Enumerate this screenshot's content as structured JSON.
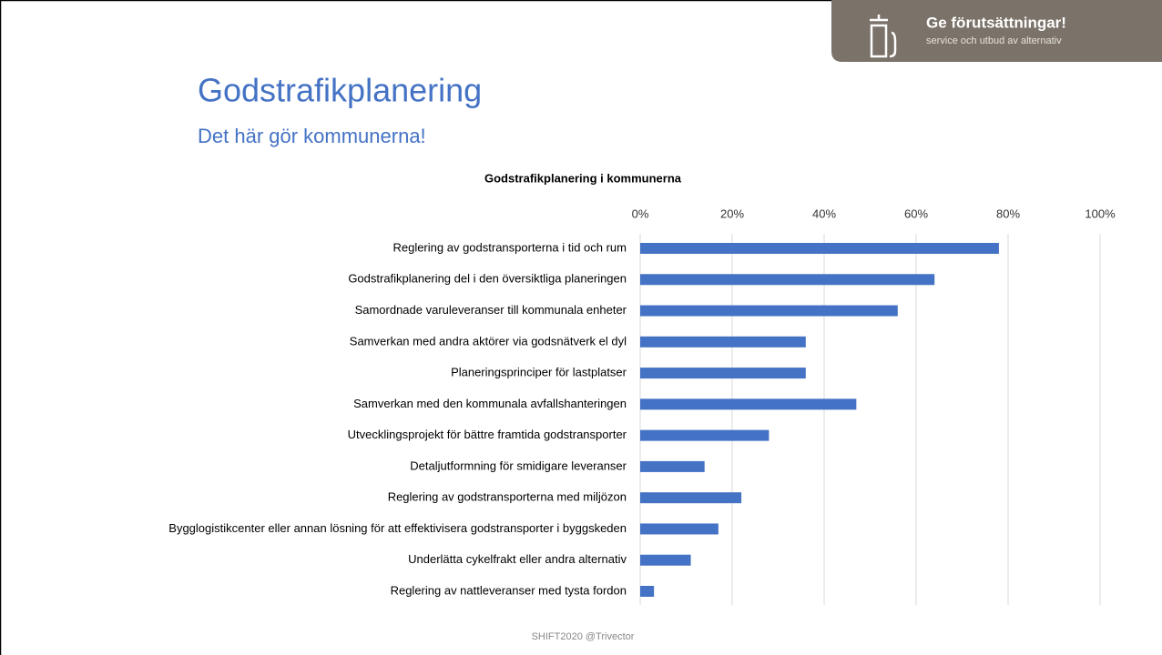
{
  "slide": {
    "title": "Godstrafikplanering",
    "subtitle": "Det här gör kommunerna!",
    "badge": {
      "title": "Ge förutsättningar!",
      "subtitle": "service och utbud av alternativ"
    },
    "footer": "SHIFT2020 @Trivector"
  },
  "chart_data": {
    "type": "hbar",
    "title": "Godstrafikplanering i kommunerna",
    "categories": [
      "Reglering av godstransporterna i tid och rum",
      "Godstrafikplanering del i den översiktliga planeringen",
      "Samordnade varuleveranser till kommunala enheter",
      "Samverkan med andra aktörer via godsnätverk el dyl",
      "Planeringsprinciper för lastplatser",
      "Samverkan med den kommunala avfallshanteringen",
      "Utvecklingsprojekt för bättre framtida godstransporter",
      "Detaljutformning för smidigare leveranser",
      "Reglering av godstransporterna med miljözon",
      "Bygglogistikcenter eller annan lösning för att effektivisera godstransporter i byggskeden",
      "Underlätta cykelfrakt eller andra alternativ",
      "Reglering av nattleveranser med tysta fordon"
    ],
    "values": [
      78,
      64,
      56,
      36,
      36,
      47,
      28,
      14,
      22,
      17,
      11,
      3
    ],
    "color": "#4472c4",
    "xlim": [
      0,
      100
    ],
    "xticks": [
      {
        "value": 0,
        "label": "0%"
      },
      {
        "value": 20,
        "label": "20%"
      },
      {
        "value": 40,
        "label": "40%"
      },
      {
        "value": 60,
        "label": "60%"
      },
      {
        "value": 80,
        "label": "80%"
      },
      {
        "value": 100,
        "label": "100%"
      }
    ],
    "grid": true
  }
}
